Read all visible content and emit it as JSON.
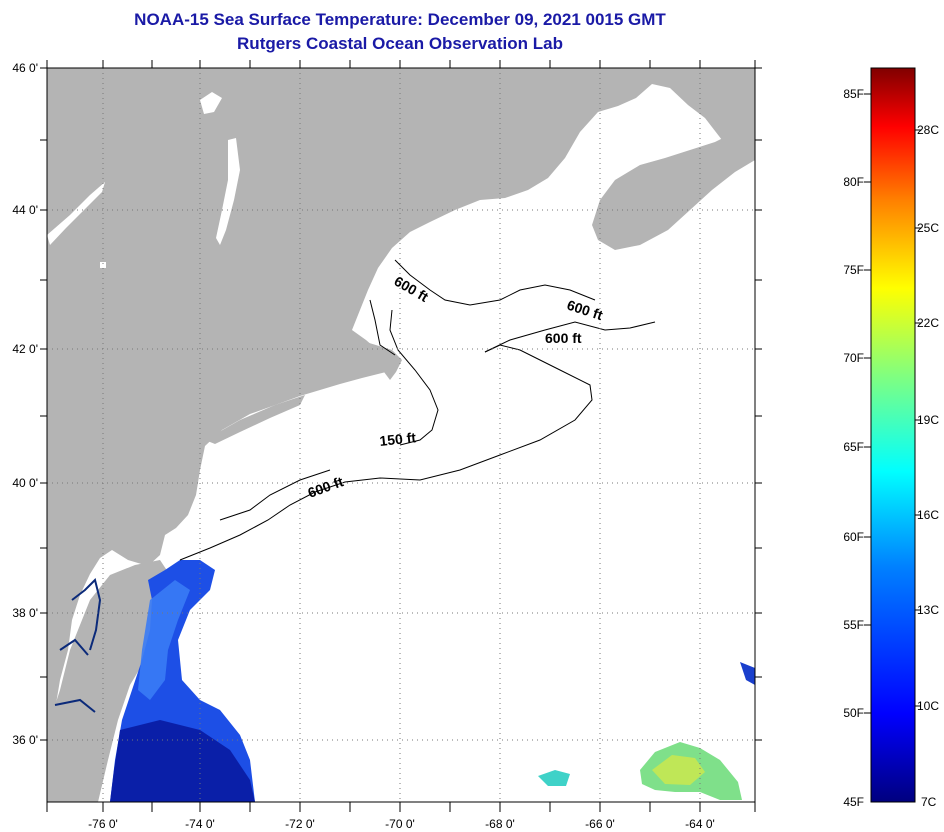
{
  "title": "NOAA-15 Sea Surface Temperature:  December 09, 2021 0015 GMT",
  "subtitle": "Rutgers Coastal Ocean Observation Lab",
  "map": {
    "lat_labels": [
      "46 0'",
      "44 0'",
      "42 0'",
      "40 0'",
      "38 0'",
      "36 0'"
    ],
    "lon_labels": [
      "-76 0'",
      "-74 0'",
      "-72 0'",
      "-70 0'",
      "-68 0'",
      "-66 0'",
      "-64 0'"
    ],
    "contour_labels": [
      "600 ft",
      "600 ft",
      "600 ft",
      "150 ft",
      "600 ft"
    ],
    "colors": {
      "land": "#b4b4b4",
      "ocean": "#ffffff",
      "grid": "#000000"
    }
  },
  "colorbar": {
    "fahrenheit_labels": [
      "85F",
      "80F",
      "75F",
      "70F",
      "65F",
      "60F",
      "55F",
      "50F",
      "45F"
    ],
    "celsius_labels": [
      "28C",
      "25C",
      "22C",
      "19C",
      "16C",
      "13C",
      "10C",
      "7C"
    ]
  }
}
